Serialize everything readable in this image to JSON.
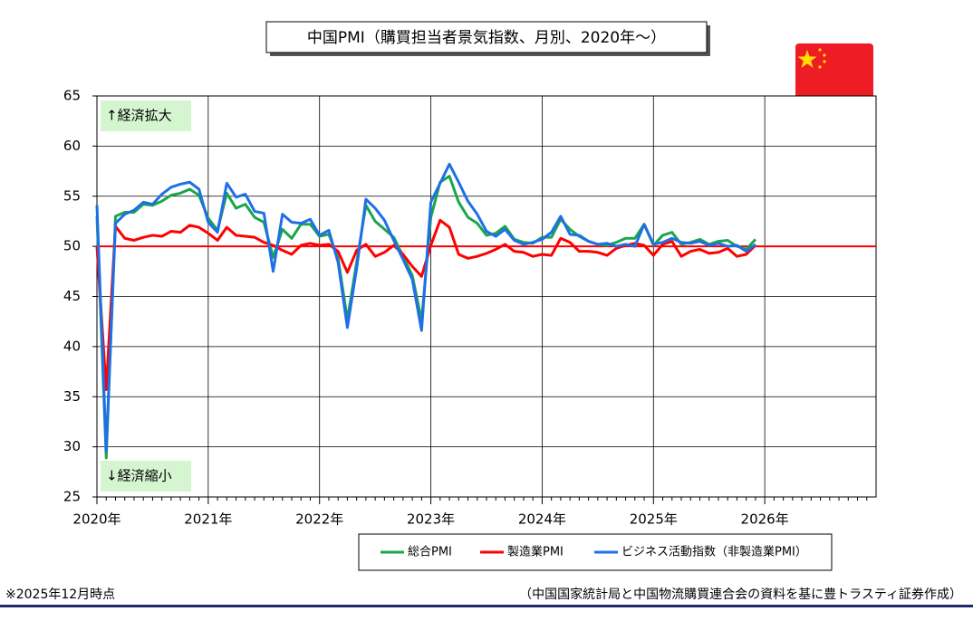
{
  "chart_data": {
    "type": "line",
    "title": "中国PMI（購買担当者景気指数、月別、2020年～）",
    "categories": [
      "2020年",
      null,
      null,
      null,
      null,
      null,
      null,
      null,
      null,
      null,
      null,
      null,
      "2021年",
      null,
      null,
      null,
      null,
      null,
      null,
      null,
      null,
      null,
      null,
      null,
      "2022年",
      null,
      null,
      null,
      null,
      null,
      null,
      null,
      null,
      null,
      null,
      null,
      "2023年",
      null,
      null,
      null,
      null,
      null,
      null,
      null,
      null,
      null,
      null,
      null,
      "2024年",
      null,
      null,
      null,
      null,
      null,
      null,
      null,
      null,
      null,
      null,
      null,
      "2025年",
      null,
      null,
      null,
      null,
      null,
      null,
      null,
      null,
      null,
      null,
      null,
      "2026年",
      null,
      null,
      null,
      null,
      null,
      null,
      null,
      null,
      null,
      null,
      null
    ],
    "series": [
      {
        "name": "総合PMI",
        "color": "#1aa64a",
        "values": [
          53.0,
          28.9,
          53.0,
          53.4,
          53.4,
          54.2,
          54.1,
          54.5,
          55.1,
          55.3,
          55.7,
          55.1,
          52.8,
          51.6,
          55.3,
          53.8,
          54.2,
          52.9,
          52.4,
          48.9,
          51.7,
          50.8,
          52.2,
          52.2,
          51.0,
          51.2,
          48.8,
          42.7,
          48.4,
          54.1,
          52.5,
          51.7,
          50.9,
          49.0,
          47.1,
          42.6,
          52.9,
          56.4,
          57.0,
          54.4,
          52.9,
          52.3,
          51.1,
          51.3,
          52.0,
          50.7,
          50.4,
          50.3,
          50.9,
          50.9,
          52.7,
          51.7,
          51.0,
          50.5,
          50.2,
          50.1,
          50.4,
          50.8,
          50.8,
          52.2,
          50.1,
          51.1,
          51.4,
          50.2,
          50.4,
          50.7,
          50.2,
          50.5,
          50.6,
          50.0,
          49.7,
          50.7,
          null,
          null,
          null,
          null,
          null,
          null,
          null,
          null,
          null,
          null,
          null,
          null
        ]
      },
      {
        "name": "製造業PMI",
        "color": "#ff0000",
        "values": [
          50.0,
          35.7,
          52.0,
          50.8,
          50.6,
          50.9,
          51.1,
          51.0,
          51.5,
          51.4,
          52.1,
          51.9,
          51.3,
          50.6,
          51.9,
          51.1,
          51.0,
          50.9,
          50.4,
          50.1,
          49.6,
          49.2,
          50.1,
          50.3,
          50.1,
          50.2,
          49.5,
          47.4,
          49.6,
          50.2,
          49.0,
          49.4,
          50.1,
          49.2,
          48.0,
          47.0,
          50.1,
          52.6,
          51.9,
          49.2,
          48.8,
          49.0,
          49.3,
          49.7,
          50.2,
          49.5,
          49.4,
          49.0,
          49.2,
          49.1,
          50.8,
          50.4,
          49.5,
          49.5,
          49.4,
          49.1,
          49.8,
          50.1,
          50.3,
          50.1,
          49.1,
          50.2,
          50.5,
          49.0,
          49.5,
          49.7,
          49.3,
          49.4,
          49.8,
          49.0,
          49.2,
          50.1,
          null,
          null,
          null,
          null,
          null,
          null,
          null,
          null,
          null,
          null,
          null,
          null
        ]
      },
      {
        "name": "ビジネス活動指数（非製造業PMI）",
        "color": "#1e6fe8",
        "values": [
          54.1,
          29.6,
          52.3,
          53.2,
          53.6,
          54.4,
          54.2,
          55.2,
          55.9,
          56.2,
          56.4,
          55.7,
          52.4,
          51.4,
          56.3,
          54.9,
          55.2,
          53.5,
          53.3,
          47.5,
          53.2,
          52.4,
          52.3,
          52.7,
          51.1,
          51.6,
          48.4,
          41.9,
          47.8,
          54.7,
          53.8,
          52.6,
          50.6,
          48.7,
          46.7,
          41.6,
          54.4,
          56.3,
          58.2,
          56.4,
          54.5,
          53.2,
          51.5,
          51.0,
          51.7,
          50.6,
          50.2,
          50.4,
          50.7,
          51.4,
          53.0,
          51.2,
          51.1,
          50.5,
          50.2,
          50.3,
          50.0,
          50.2,
          50.0,
          52.2,
          50.2,
          50.4,
          50.8,
          50.4,
          50.3,
          50.5,
          50.1,
          50.3,
          50.0,
          50.1,
          49.5,
          50.2,
          null,
          null,
          null,
          null,
          null,
          null,
          null,
          null,
          null,
          null,
          null,
          null
        ]
      }
    ],
    "ylim": [
      25,
      65
    ],
    "yticks": [
      25,
      30,
      35,
      40,
      45,
      50,
      55,
      60,
      65
    ],
    "grid": true,
    "hline": 50,
    "hline_color": "#ff0000",
    "annotations": [
      "↑経済拡大",
      "↓経済縮小"
    ],
    "legend": "bottom",
    "footnote": "※2025年12月時点",
    "source": "（中国国家統計局と中国物流購買連合会の資料を基に豊トラスティ証券作成）"
  }
}
